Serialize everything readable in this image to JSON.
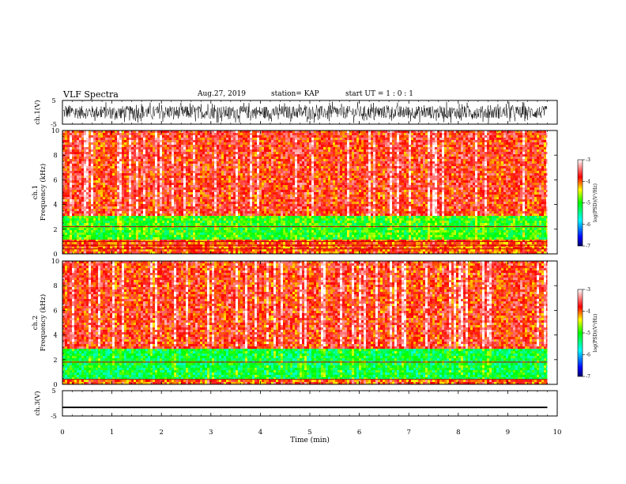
{
  "header": {
    "title": "VLF Spectra",
    "date": "Aug.27, 2019",
    "station": "station= KAP",
    "start": "start  UT  =   1 : 0  : 1"
  },
  "chart_data": [
    {
      "type": "line",
      "panel": "ch1-waveform",
      "ylabel": "ch.1(V)",
      "ylim": [
        -5,
        5
      ],
      "yticks": [
        5,
        -5
      ],
      "xlim": [
        0,
        10
      ],
      "data_xrange": [
        0,
        9.8
      ],
      "series": [
        {
          "values_range": [
            -4.5,
            4.5
          ],
          "values_mean": 0
        }
      ]
    },
    {
      "type": "heatmap",
      "panel": "ch1-spectrogram",
      "ylabel": "ch.1\nFrequency  (kHz)",
      "ylabel_lines": [
        "ch.1",
        "Frequency  (kHz)"
      ],
      "ylim": [
        0,
        10
      ],
      "yticks": [
        0,
        2,
        4,
        6,
        8,
        10
      ],
      "xlim": [
        0,
        10
      ],
      "data_xrange": [
        0,
        9.8
      ],
      "colorbar": {
        "label": "log(PSD)(V²/Hz)",
        "range": [
          -7,
          -3
        ],
        "ticks": [
          -3,
          -4,
          -5,
          -6,
          -7
        ],
        "colors": [
          "#000066",
          "#0000ff",
          "#00ffff",
          "#00ff00",
          "#ffff00",
          "#ff0000",
          "#ffffff"
        ]
      },
      "bands": [
        {
          "f_range": [
            0,
            1.2
          ],
          "log_psd": -4.0
        },
        {
          "f_range": [
            1.2,
            3.0
          ],
          "log_psd": -5.0
        },
        {
          "f_range": [
            3.0,
            10
          ],
          "log_psd": -3.8
        }
      ],
      "lines_khz": [
        0.4,
        0.7,
        1.0,
        2.2
      ]
    },
    {
      "type": "heatmap",
      "panel": "ch2-spectrogram",
      "ylabel": "ch.2\nFrequency  (kHz)",
      "ylabel_lines": [
        "ch.2",
        "Frequency  (kHz)"
      ],
      "ylim": [
        0,
        10
      ],
      "yticks": [
        0,
        2,
        4,
        6,
        8,
        10
      ],
      "xlim": [
        0,
        10
      ],
      "data_xrange": [
        0,
        9.8
      ],
      "colorbar": {
        "label": "log(PSD)(V²/Hz)",
        "range": [
          -7,
          -3
        ],
        "ticks": [
          -3,
          -4,
          -5,
          -6,
          -7
        ],
        "colors": [
          "#000066",
          "#0000ff",
          "#00ffff",
          "#00ff00",
          "#ffff00",
          "#ff0000",
          "#ffffff"
        ]
      },
      "bands": [
        {
          "f_range": [
            0,
            0.3
          ],
          "log_psd": -4.0
        },
        {
          "f_range": [
            0.3,
            2.9
          ],
          "log_psd": -5.2
        },
        {
          "f_range": [
            2.9,
            10
          ],
          "log_psd": -3.8
        }
      ],
      "lines_khz": [
        0.4,
        1.8
      ]
    },
    {
      "type": "line",
      "panel": "ch3-waveform",
      "ylabel": "ch.3(V)",
      "ylim": [
        -5,
        5
      ],
      "yticks": [
        5,
        -5
      ],
      "xlim": [
        0,
        10
      ],
      "xlabel": "Time  (min)",
      "xticks": [
        0,
        1,
        2,
        3,
        4,
        5,
        6,
        7,
        8,
        9,
        10
      ],
      "data_xrange": [
        0,
        9.8
      ],
      "series": [
        {
          "values_range": [
            -1.9,
            -1.3
          ],
          "values_mean": -1.6
        }
      ]
    }
  ]
}
